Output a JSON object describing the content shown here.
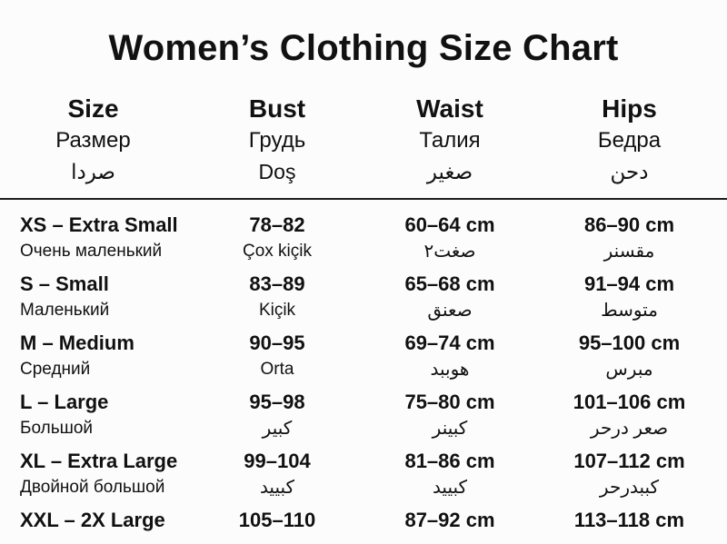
{
  "title": "Women’s Clothing Size Chart",
  "colors": {
    "text": "#111111",
    "background": "#fcfcfc",
    "divider": "#1c1c1c"
  },
  "table": {
    "columns": [
      {
        "key": "size",
        "en": "Size",
        "ru": "Размер",
        "third": "صردا",
        "third_lang": "ar"
      },
      {
        "key": "bust",
        "en": "Bust",
        "ru": "Грудь",
        "third": "Doş",
        "third_lang": "az"
      },
      {
        "key": "waist",
        "en": "Waist",
        "ru": "Талия",
        "third": "صغير",
        "third_lang": "ar"
      },
      {
        "key": "hips",
        "en": "Hips",
        "ru": "Бедра",
        "third": "دحن",
        "third_lang": "ar"
      }
    ],
    "rows": [
      {
        "size": {
          "primary": "XS – Extra Small",
          "secondary": "Очень маленький",
          "lang": "ru"
        },
        "bust": {
          "primary": "78–82",
          "secondary": "Çox kiçik",
          "lang": "az"
        },
        "waist": {
          "primary": "60–64 cm",
          "secondary": "صغت٢",
          "lang": "ar"
        },
        "hips": {
          "primary": "86–90 cm",
          "secondary": "مقسنر",
          "lang": "ar"
        }
      },
      {
        "size": {
          "primary": "S – Small",
          "secondary": "Маленький",
          "lang": "ru"
        },
        "bust": {
          "primary": "83–89",
          "secondary": "Kiçik",
          "lang": "az"
        },
        "waist": {
          "primary": "65–68 cm",
          "secondary": "صعنق",
          "lang": "ar"
        },
        "hips": {
          "primary": "91–94 cm",
          "secondary": "متوسط",
          "lang": "ar"
        }
      },
      {
        "size": {
          "primary": "M – Medium",
          "secondary": "Средний",
          "lang": "ru"
        },
        "bust": {
          "primary": "90–95",
          "secondary": "Orta",
          "lang": "az"
        },
        "waist": {
          "primary": "69–74 cm",
          "secondary": "هوببد",
          "lang": "ar"
        },
        "hips": {
          "primary": "95–100 cm",
          "secondary": "مبرس",
          "lang": "ar"
        }
      },
      {
        "size": {
          "primary": "L – Large",
          "secondary": "Большой",
          "lang": "ru"
        },
        "bust": {
          "primary": "95–98",
          "secondary": "كبير",
          "lang": "ar"
        },
        "waist": {
          "primary": "75–80 cm",
          "secondary": "كبينر",
          "lang": "ar"
        },
        "hips": {
          "primary": "101–106 cm",
          "secondary": "صعر درحر",
          "lang": "ar"
        }
      },
      {
        "size": {
          "primary": "XL – Extra Large",
          "secondary": "Двойной большой",
          "lang": "ru"
        },
        "bust": {
          "primary": "99–104",
          "secondary": "كبييد",
          "lang": "ar"
        },
        "waist": {
          "primary": "81–86 cm",
          "secondary": "كبييد",
          "lang": "ar"
        },
        "hips": {
          "primary": "107–112 cm",
          "secondary": "كببدرحر",
          "lang": "ar"
        }
      },
      {
        "size": {
          "primary": "XXL – 2X Large",
          "secondary": "",
          "lang": ""
        },
        "bust": {
          "primary": "105–110",
          "secondary": "",
          "lang": ""
        },
        "waist": {
          "primary": "87–92 cm",
          "secondary": "",
          "lang": ""
        },
        "hips": {
          "primary": "113–118 cm",
          "secondary": "",
          "lang": ""
        }
      }
    ]
  }
}
